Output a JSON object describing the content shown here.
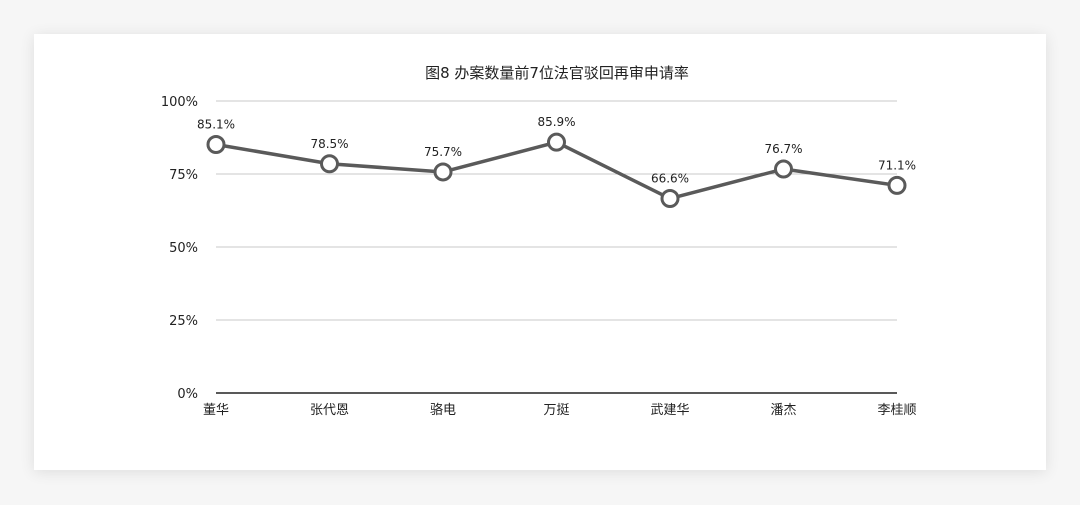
{
  "chart_data": {
    "type": "line",
    "title": "图8  办案数量前7位法官驳回再审申请率",
    "xlabel": "",
    "ylabel": "",
    "categories": [
      "董华",
      "张代恩",
      "骆电",
      "万挺",
      "武建华",
      "潘杰",
      "李桂顺"
    ],
    "series": [
      {
        "values": [
          85.1,
          78.5,
          75.7,
          85.9,
          66.6,
          76.7,
          71.1
        ],
        "labels": [
          "85.1%",
          "78.5%",
          "75.7%",
          "85.9%",
          "66.6%",
          "76.7%",
          "71.1%"
        ]
      }
    ],
    "ylim": [
      0,
      100
    ],
    "yticks": [
      0,
      25,
      50,
      75,
      100
    ],
    "ytick_labels": [
      "0%",
      "25%",
      "50%",
      "75%",
      "100%"
    ],
    "grid": true,
    "legend": "none",
    "colors": {
      "line": "#5a5a5a",
      "marker_fill": "#ffffff",
      "grid": "#c8c8c8",
      "axis": "#222222"
    }
  }
}
